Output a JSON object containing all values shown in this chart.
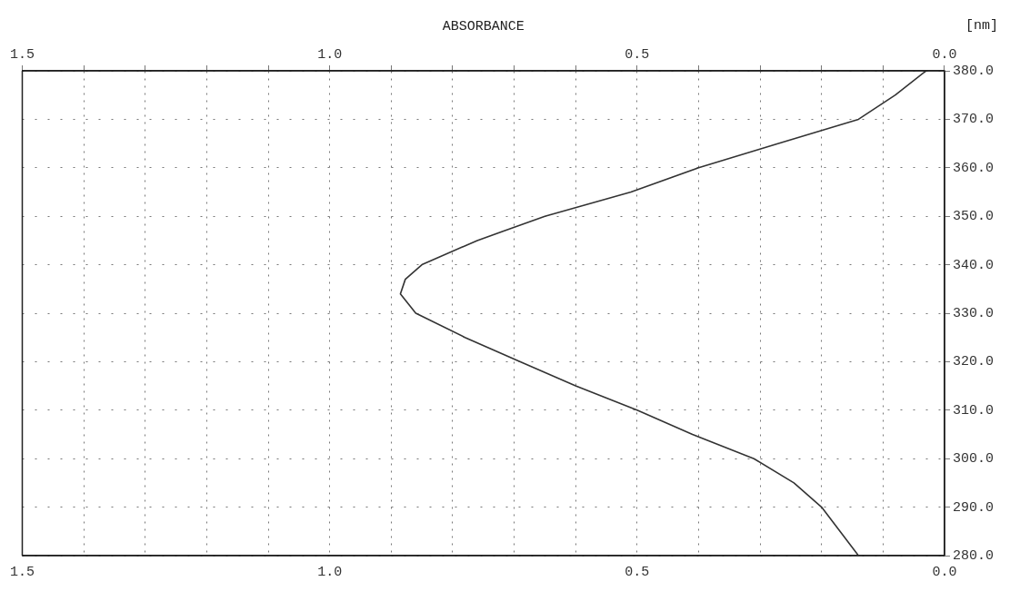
{
  "chart_data": {
    "type": "line",
    "x2label": "ABSORBANCE",
    "ylabel": "[nm]",
    "series": [
      {
        "color": "#333333",
        "x": [
          0.03,
          0.08,
          0.14,
          0.27,
          0.4,
          0.51,
          0.65,
          0.76,
          0.85,
          0.877,
          0.885,
          0.86,
          0.78,
          0.69,
          0.6,
          0.5,
          0.41,
          0.31,
          0.245,
          0.2,
          0.17,
          0.14
        ],
        "values": [
          380,
          375,
          370,
          365,
          360,
          355,
          350,
          345,
          340,
          337,
          334,
          330,
          325,
          320,
          315,
          310,
          305,
          300,
          295,
          290,
          285,
          280
        ]
      }
    ],
    "xlim": [
      1.5,
      0.0
    ],
    "x2lim": [
      1.5,
      0.0
    ],
    "ylim": [
      280,
      380
    ],
    "xticks": [
      1.5,
      {
        "value": 1.4,
        "label": null
      },
      {
        "value": 1.3,
        "label": null
      },
      {
        "value": 1.2,
        "label": null
      },
      {
        "value": 1.1,
        "label": null
      },
      {
        "value": 1.0,
        "label": "1.0"
      },
      {
        "value": 0.9,
        "label": null
      },
      {
        "value": 0.8,
        "label": null
      },
      {
        "value": 0.7,
        "label": null
      },
      {
        "value": 0.6,
        "label": null
      },
      0.5,
      {
        "value": 0.4,
        "label": null
      },
      {
        "value": 0.3,
        "label": null
      },
      {
        "value": 0.2,
        "label": null
      },
      {
        "value": 0.1,
        "label": null
      },
      {
        "value": 0.0,
        "label": "0.0"
      }
    ],
    "x2ticks": [
      1.5,
      {
        "value": 1.4,
        "label": null
      },
      {
        "value": 1.3,
        "label": null
      },
      {
        "value": 1.2,
        "label": null
      },
      {
        "value": 1.1,
        "label": null
      },
      {
        "value": 1.0,
        "label": "1.0"
      },
      {
        "value": 0.9,
        "label": null
      },
      {
        "value": 0.8,
        "label": null
      },
      {
        "value": 0.7,
        "label": null
      },
      {
        "value": 0.6,
        "label": null
      },
      0.5,
      {
        "value": 0.4,
        "label": null
      },
      {
        "value": 0.3,
        "label": null
      },
      {
        "value": 0.2,
        "label": null
      },
      {
        "value": 0.1,
        "label": null
      },
      {
        "value": 0.0,
        "label": "0.0"
      }
    ],
    "yticks": [
      {
        "value": 280,
        "label": "280.0"
      },
      {
        "value": 290,
        "label": "290.0"
      },
      {
        "value": 300,
        "label": "300.0"
      },
      {
        "value": 310,
        "label": "310.0"
      },
      {
        "value": 320,
        "label": "320.0"
      },
      {
        "value": 330,
        "label": "330.0"
      },
      {
        "value": 340,
        "label": "340.0"
      },
      {
        "value": 350,
        "label": "350.0"
      },
      {
        "value": 360,
        "label": "360.0"
      },
      {
        "value": 370,
        "label": "370.0"
      },
      {
        "value": 380,
        "label": "380.0"
      }
    ],
    "grid": true,
    "legend": false,
    "marker": "none",
    "line_style": "solid"
  }
}
